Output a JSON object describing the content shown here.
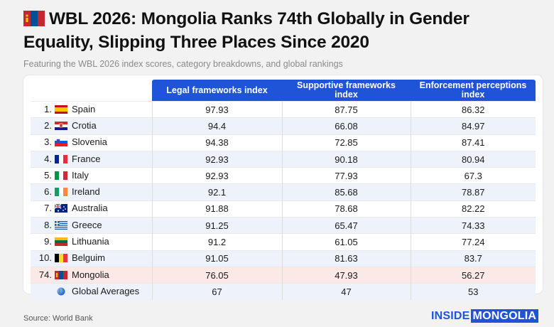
{
  "title": "WBL 2026: Mongolia Ranks 74th Globally in Gender Equality, Slipping Three Places Since 2020",
  "subtitle": "Featuring the WBL 2026 index scores, category breakdowns, and global rankings",
  "source": "Source: World Bank",
  "brand": {
    "part1": "INSIDE",
    "part2": "MONGOLIA"
  },
  "colors": {
    "header": "#1f54d8",
    "alt_row": "#eef3fb",
    "highlight_row": "#fbe9e7",
    "background": "#f2f2f2"
  },
  "chart_data": {
    "type": "table",
    "title": "WBL 2026: Mongolia Ranks 74th Globally in Gender Equality, Slipping Three Places Since 2020",
    "columns": [
      "Legal frameworks index",
      "Supportive frameworks index",
      "Enforcement perceptions index"
    ],
    "rows": [
      {
        "rank": "1.",
        "country": "Spain",
        "flag": "spain-flag-icon",
        "values": [
          "97.93",
          "87.75",
          "86.32"
        ]
      },
      {
        "rank": "2.",
        "country": "Crotia",
        "flag": "croatia-flag-icon",
        "values": [
          "94.4",
          "66.08",
          "84.97"
        ]
      },
      {
        "rank": "3.",
        "country": "Slovenia",
        "flag": "slovenia-flag-icon",
        "values": [
          "94.38",
          "72.85",
          "87.41"
        ]
      },
      {
        "rank": "4.",
        "country": "France",
        "flag": "france-flag-icon",
        "values": [
          "92.93",
          "90.18",
          "80.94"
        ]
      },
      {
        "rank": "5.",
        "country": "Italy",
        "flag": "italy-flag-icon",
        "values": [
          "92.93",
          "77.93",
          "67.3"
        ]
      },
      {
        "rank": "6.",
        "country": "Ireland",
        "flag": "ireland-flag-icon",
        "values": [
          "92.1",
          "85.68",
          "78.87"
        ]
      },
      {
        "rank": "7.",
        "country": "Australia",
        "flag": "australia-flag-icon",
        "values": [
          "91.88",
          "78.68",
          "82.22"
        ]
      },
      {
        "rank": "8.",
        "country": "Greece",
        "flag": "greece-flag-icon",
        "values": [
          "91.25",
          "65.47",
          "74.33"
        ]
      },
      {
        "rank": "9.",
        "country": "Lithuania",
        "flag": "lithuania-flag-icon",
        "values": [
          "91.2",
          "61.05",
          "77.24"
        ]
      },
      {
        "rank": "10.",
        "country": "Belguim",
        "flag": "belgium-flag-icon",
        "values": [
          "91.05",
          "81.63",
          "83.7"
        ]
      },
      {
        "rank": "74.",
        "country": "Mongolia",
        "flag": "mongolia-flag-icon",
        "values": [
          "76.05",
          "47.93",
          "56.27"
        ]
      },
      {
        "rank": "",
        "country": "Global Averages",
        "flag": "globe-icon",
        "values": [
          "67",
          "47",
          "53"
        ]
      }
    ]
  }
}
